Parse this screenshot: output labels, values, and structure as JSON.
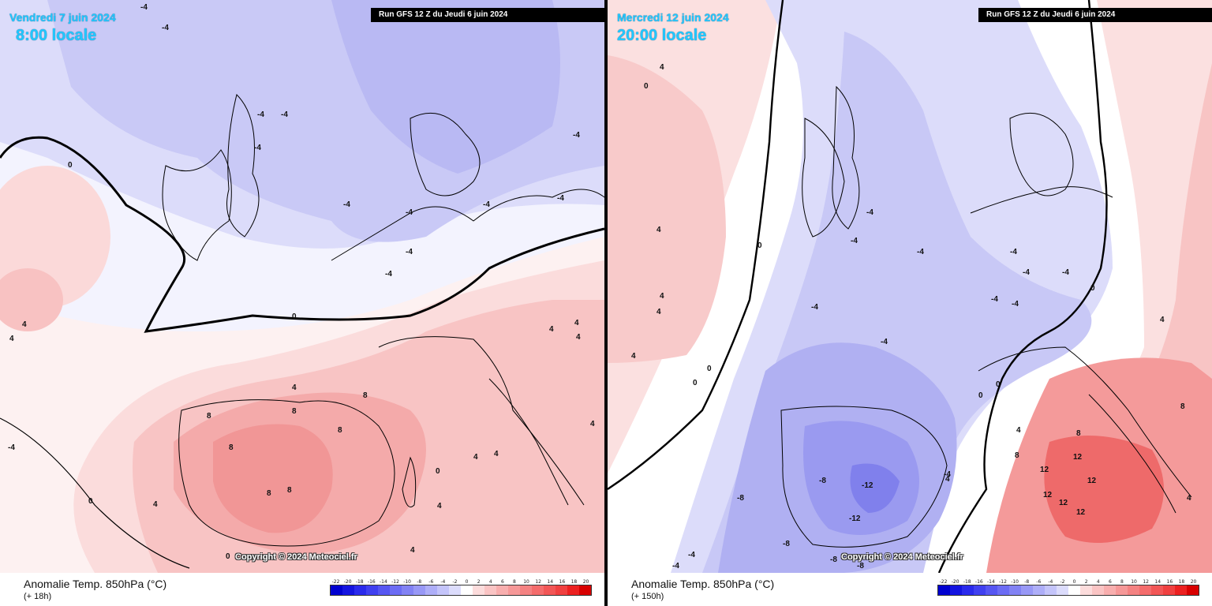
{
  "panels": [
    {
      "date": "Vendredi 7 juin 2024",
      "time": "8:00 locale",
      "run": "Run GFS 12 Z du Jeudi 6 juin 2024",
      "copyright": "Copyright © 2024 Meteociel.fr",
      "variable": "Anomalie Temp. 850hPa (°C)",
      "lead": "(+ 18h)",
      "contour_labels": [
        "-4",
        "-4",
        "-4",
        "-4",
        "-4",
        "-4",
        "-4",
        "-4",
        "-4",
        "-4",
        "0",
        "0",
        "0",
        "0",
        "4",
        "4",
        "4",
        "4",
        "4",
        "4",
        "4",
        "4",
        "8",
        "8",
        "8",
        "8",
        "8",
        "8",
        "8",
        "-4",
        "4",
        "4",
        "4",
        "0",
        "4",
        "-4",
        "-4"
      ]
    },
    {
      "date": "Mercredi 12 juin 2024",
      "time": "20:00 locale",
      "run": "Run GFS 12 Z du Jeudi 6 juin 2024",
      "copyright": "Copyright © 2024 Meteociel.fr",
      "variable": "Anomalie Temp. 850hPa (°C)",
      "lead": "(+ 150h)",
      "contour_labels": [
        "4",
        "0",
        "4",
        "4",
        "4",
        "4",
        "0",
        "0",
        "0",
        "-4",
        "-4",
        "-4",
        "-4",
        "-4",
        "-4",
        "-4",
        "-4",
        "-4",
        "-4",
        "-8",
        "-8",
        "-8",
        "-12",
        "-12",
        "-8",
        "-8",
        "-4",
        "-4",
        "-4",
        "0",
        "0",
        "0",
        "4",
        "8",
        "8",
        "12",
        "12",
        "12",
        "12",
        "12",
        "12",
        "8",
        "4",
        "4",
        "4"
      ]
    }
  ],
  "legend": {
    "ticks": [
      "-22",
      "-20",
      "-18",
      "-16",
      "-14",
      "-12",
      "-10",
      "-8",
      "-6",
      "-4",
      "-2",
      "0",
      "2",
      "4",
      "6",
      "8",
      "10",
      "12",
      "14",
      "16",
      "18",
      "20"
    ],
    "colors": [
      "#0000d0",
      "#1414e0",
      "#2a2aec",
      "#4040f0",
      "#5656f2",
      "#6c6cf4",
      "#8282f4",
      "#9898f6",
      "#aeaef8",
      "#c4c4fa",
      "#dcdcfc",
      "#ffffff",
      "#fcdcdc",
      "#fac4c4",
      "#f8aeae",
      "#f69898",
      "#f48282",
      "#f46c6c",
      "#f25656",
      "#f04040",
      "#ec2020",
      "#d80000"
    ]
  }
}
